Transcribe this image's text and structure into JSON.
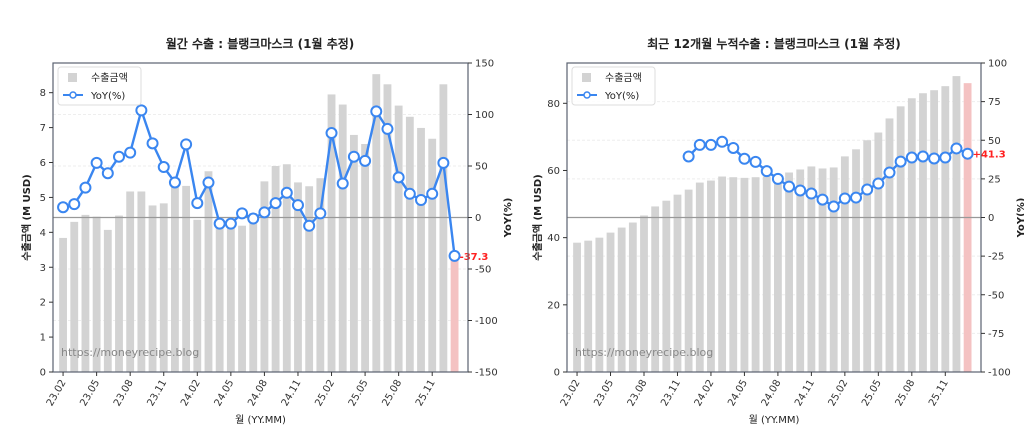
{
  "chart_data": [
    {
      "type": "bar+line",
      "title": "월간 수출 : 블랭크마스크 (1월 추정)",
      "xlabel": "월 (YY.MM)",
      "ylabel": "수출금액 (M USD)",
      "y2label": "YoY(%)",
      "ylim": [
        0,
        8.85
      ],
      "y2lim": [
        -150,
        150
      ],
      "yticks": [
        0,
        1,
        2,
        3,
        4,
        5,
        6,
        7,
        8
      ],
      "y2ticks": [
        -150,
        -100,
        -50,
        0,
        50,
        100,
        150
      ],
      "legend": [
        "수출금액",
        "YoY(%)"
      ],
      "legend_position": "upper left",
      "watermark": "https://moneyrecipe.blog",
      "xtick_labels": [
        "23.02",
        "23.05",
        "23.08",
        "23.11",
        "24.02",
        "24.05",
        "24.08",
        "24.11",
        "25.02",
        "25.05",
        "25.08",
        "25.11"
      ],
      "categories": [
        "23.02",
        "23.03",
        "23.04",
        "23.05",
        "23.06",
        "23.07",
        "23.08",
        "23.09",
        "23.10",
        "23.11",
        "23.12",
        "24.01",
        "24.02",
        "24.03",
        "24.04",
        "24.05",
        "24.06",
        "24.07",
        "24.08",
        "24.09",
        "24.10",
        "24.11",
        "24.12",
        "25.01",
        "25.02",
        "25.03",
        "25.04",
        "25.05",
        "25.06",
        "25.07",
        "25.08",
        "25.09",
        "25.10",
        "25.11",
        "25.12",
        "26.01"
      ],
      "series": [
        {
          "name": "수출금액",
          "type": "bar",
          "color": "#d3d3d3",
          "last_color": "#f4c2c2",
          "values": [
            3.84,
            4.3,
            4.5,
            4.45,
            4.07,
            4.48,
            5.17,
            5.17,
            4.77,
            4.83,
            5.35,
            5.33,
            4.36,
            5.75,
            4.4,
            4.35,
            4.19,
            4.55,
            5.46,
            5.9,
            5.95,
            5.43,
            5.32,
            5.55,
            7.95,
            7.66,
            6.79,
            6.53,
            8.53,
            8.24,
            7.63,
            7.31,
            6.99,
            6.68,
            8.24,
            3.3
          ]
        },
        {
          "name": "YoY(%)",
          "type": "line",
          "color": "#3a86f0",
          "values": [
            10,
            13,
            29,
            53,
            43,
            59,
            63,
            104,
            72,
            49,
            34,
            71,
            14,
            34,
            -6,
            -6,
            4,
            -1,
            5,
            14,
            24,
            12,
            -8,
            4,
            82,
            33,
            59,
            55,
            103,
            86,
            39,
            23,
            17,
            23,
            53,
            -37.3
          ]
        }
      ],
      "last_label": "-37.3"
    },
    {
      "type": "bar+line",
      "title": "최근 12개월 누적수출 : 블랭크마스크 (1월 추정)",
      "xlabel": "월 (YY.MM)",
      "ylabel": "수출금액 (M USD)",
      "y2label": "YoY(%)",
      "ylim": [
        0,
        92
      ],
      "y2lim": [
        -100,
        100
      ],
      "yticks": [
        0,
        20,
        40,
        60,
        80
      ],
      "y2ticks": [
        -100,
        -75,
        -50,
        -25,
        0,
        25,
        50,
        75,
        100
      ],
      "legend": [
        "수출금액",
        "YoY(%)"
      ],
      "legend_position": "upper left",
      "watermark": "https://moneyrecipe.blog",
      "xtick_labels": [
        "23.02",
        "23.05",
        "23.08",
        "23.11",
        "24.02",
        "24.05",
        "24.08",
        "24.11",
        "25.02",
        "25.05",
        "25.08",
        "25.11"
      ],
      "categories": [
        "23.02",
        "23.03",
        "23.04",
        "23.05",
        "23.06",
        "23.07",
        "23.08",
        "23.09",
        "23.10",
        "23.11",
        "23.12",
        "24.01",
        "24.02",
        "24.03",
        "24.04",
        "24.05",
        "24.06",
        "24.07",
        "24.08",
        "24.09",
        "24.10",
        "24.11",
        "24.12",
        "25.01",
        "25.02",
        "25.03",
        "25.04",
        "25.05",
        "25.06",
        "25.07",
        "25.08",
        "25.09",
        "25.10",
        "25.11",
        "25.12",
        "26.01"
      ],
      "series": [
        {
          "name": "수출금액",
          "type": "bar",
          "color": "#d3d3d3",
          "last_color": "#f4c2c2",
          "values": [
            38.5,
            39.1,
            40.0,
            41.5,
            43.0,
            44.5,
            46.6,
            49.3,
            51.0,
            52.8,
            54.3,
            56.4,
            57.0,
            58.2,
            58.0,
            57.8,
            58.0,
            58.2,
            58.0,
            59.4,
            60.3,
            61.2,
            60.6,
            60.9,
            64.2,
            66.3,
            69.0,
            71.3,
            75.5,
            79.1,
            81.5,
            83.0,
            83.9,
            85.1,
            88.1,
            86.0
          ]
        },
        {
          "name": "YoY(%)",
          "type": "line",
          "color": "#3a86f0",
          "values": [
            null,
            null,
            null,
            null,
            null,
            null,
            null,
            null,
            null,
            null,
            39.5,
            47,
            47,
            49,
            45,
            38,
            36,
            30,
            25,
            20,
            17.5,
            15.5,
            11.6,
            7.1,
            12.3,
            12.9,
            18.1,
            22,
            29.1,
            36.2,
            38.8,
            39.5,
            38.2,
            38.8,
            44.7,
            41.3
          ]
        }
      ],
      "last_label": "+41.3"
    }
  ]
}
